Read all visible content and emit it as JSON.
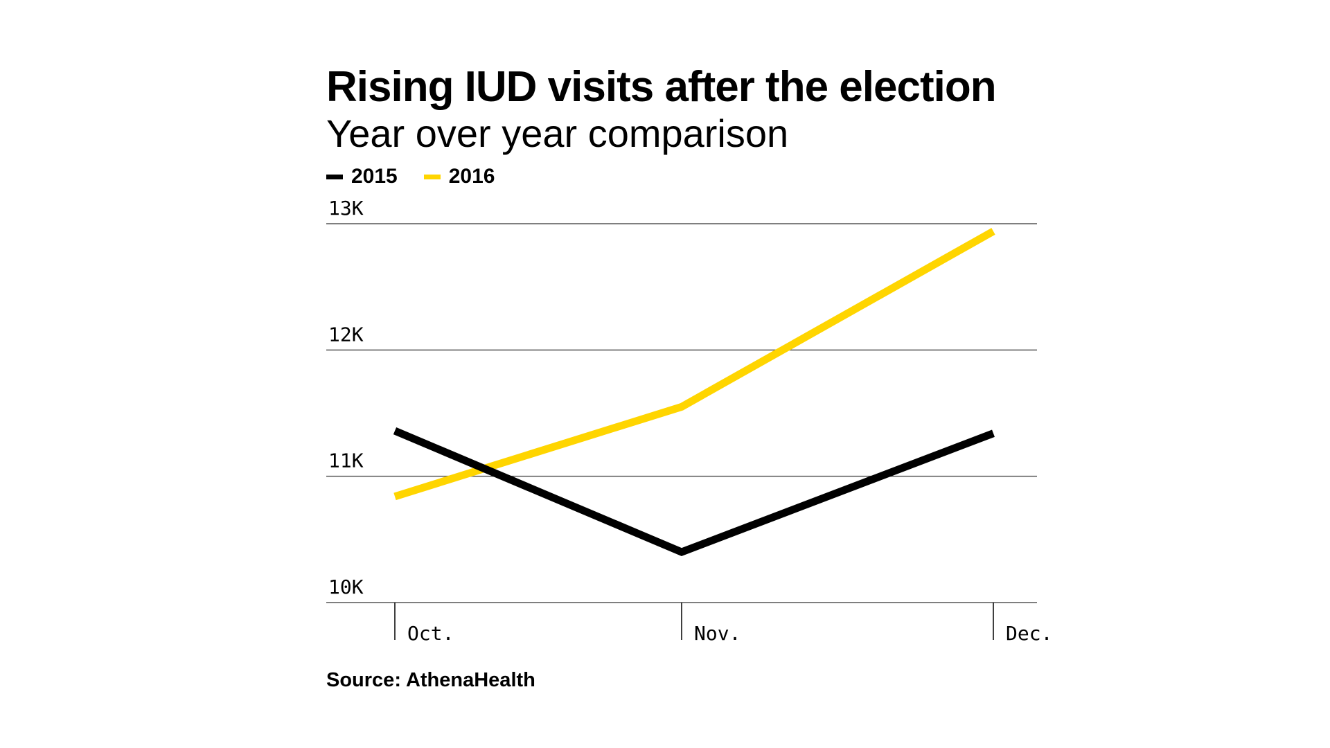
{
  "title": "Rising IUD visits after the election",
  "subtitle": "Year over year comparison",
  "source": "Source: AthenaHealth",
  "colors": {
    "series_2015": "#000000",
    "series_2016": "#FFD500",
    "grid": "#555555"
  },
  "chart_data": {
    "type": "line",
    "categories": [
      "Oct.",
      "Nov.",
      "Dec."
    ],
    "series": [
      {
        "name": "2015",
        "color": "#000000",
        "values": [
          11360,
          10400,
          11340
        ]
      },
      {
        "name": "2016",
        "color": "#FFD500",
        "values": [
          10840,
          11550,
          12940
        ]
      }
    ],
    "ylim": [
      10000,
      13000
    ],
    "yticks": [
      10000,
      11000,
      12000,
      13000
    ],
    "ytick_labels": [
      "10K",
      "11K",
      "12K",
      "13K"
    ],
    "grid": true,
    "legend_position": "top-left",
    "title": "Rising IUD visits after the election",
    "subtitle": "Year over year comparison",
    "xlabel": "",
    "ylabel": ""
  }
}
